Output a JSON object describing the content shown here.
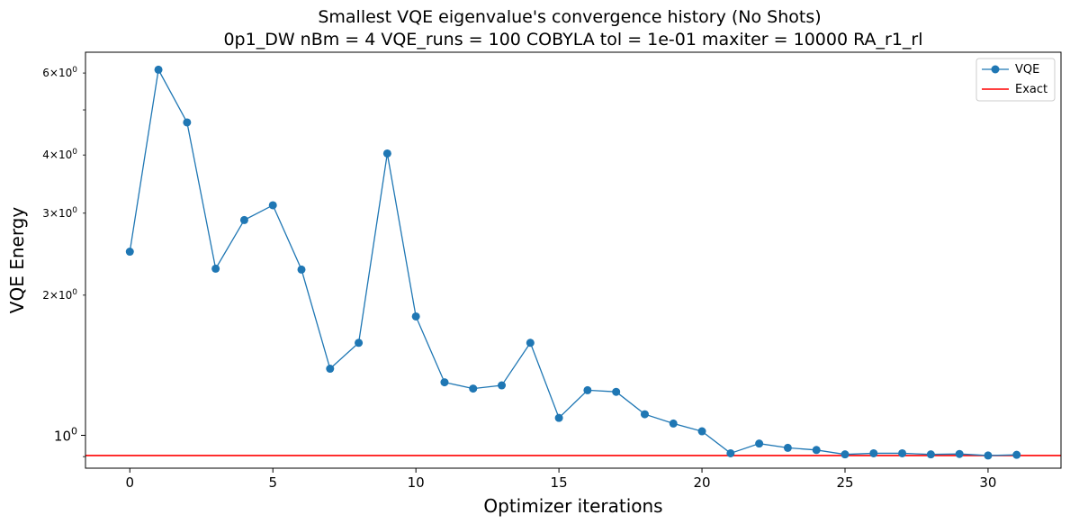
{
  "chart_data": {
    "type": "line",
    "title": "Smallest VQE eigenvalue's convergence history (No Shots)",
    "subtitle": "0p1_DW    nBm = 4    VQE_runs = 100    COBYLA    tol = 1e-01    maxiter = 10000    RA_r1_rl",
    "xlabel": "Optimizer iterations",
    "ylabel": "VQE Energy",
    "yscale": "log",
    "xlim": [
      -1.55,
      32.55
    ],
    "ylim": [
      0.85,
      6.65
    ],
    "x_ticks": [
      0,
      5,
      10,
      15,
      20,
      25,
      30
    ],
    "x_tick_labels": [
      "0",
      "5",
      "10",
      "15",
      "20",
      "25",
      "30"
    ],
    "y_major_ticks": [
      1
    ],
    "y_major_tick_labels": [
      "10^0"
    ],
    "y_minor_ticks": [
      2,
      3,
      4,
      5,
      6
    ],
    "y_minor_tick_labels": [
      "2×10^0",
      "3×10^0",
      "4×10^0",
      "",
      "6×10^0"
    ],
    "grid": false,
    "legend_position": "top-right",
    "series": [
      {
        "name": "VQE",
        "color": "#1f77b4",
        "marker": "circle",
        "x": [
          0,
          1,
          2,
          3,
          4,
          5,
          6,
          7,
          8,
          9,
          10,
          11,
          12,
          13,
          14,
          15,
          16,
          17,
          18,
          19,
          20,
          21,
          22,
          23,
          24,
          25,
          26,
          27,
          28,
          29,
          30,
          31
        ],
        "y": [
          2.48,
          6.1,
          4.7,
          2.28,
          2.9,
          3.12,
          2.27,
          1.39,
          1.58,
          4.03,
          1.8,
          1.3,
          1.26,
          1.28,
          1.58,
          1.09,
          1.25,
          1.24,
          1.11,
          1.06,
          1.02,
          0.915,
          0.96,
          0.94,
          0.93,
          0.91,
          0.915,
          0.915,
          0.91,
          0.912,
          0.905,
          0.908
        ]
      },
      {
        "name": "Exact",
        "color": "#ff0000",
        "type": "hline",
        "y": 0.905
      }
    ]
  }
}
